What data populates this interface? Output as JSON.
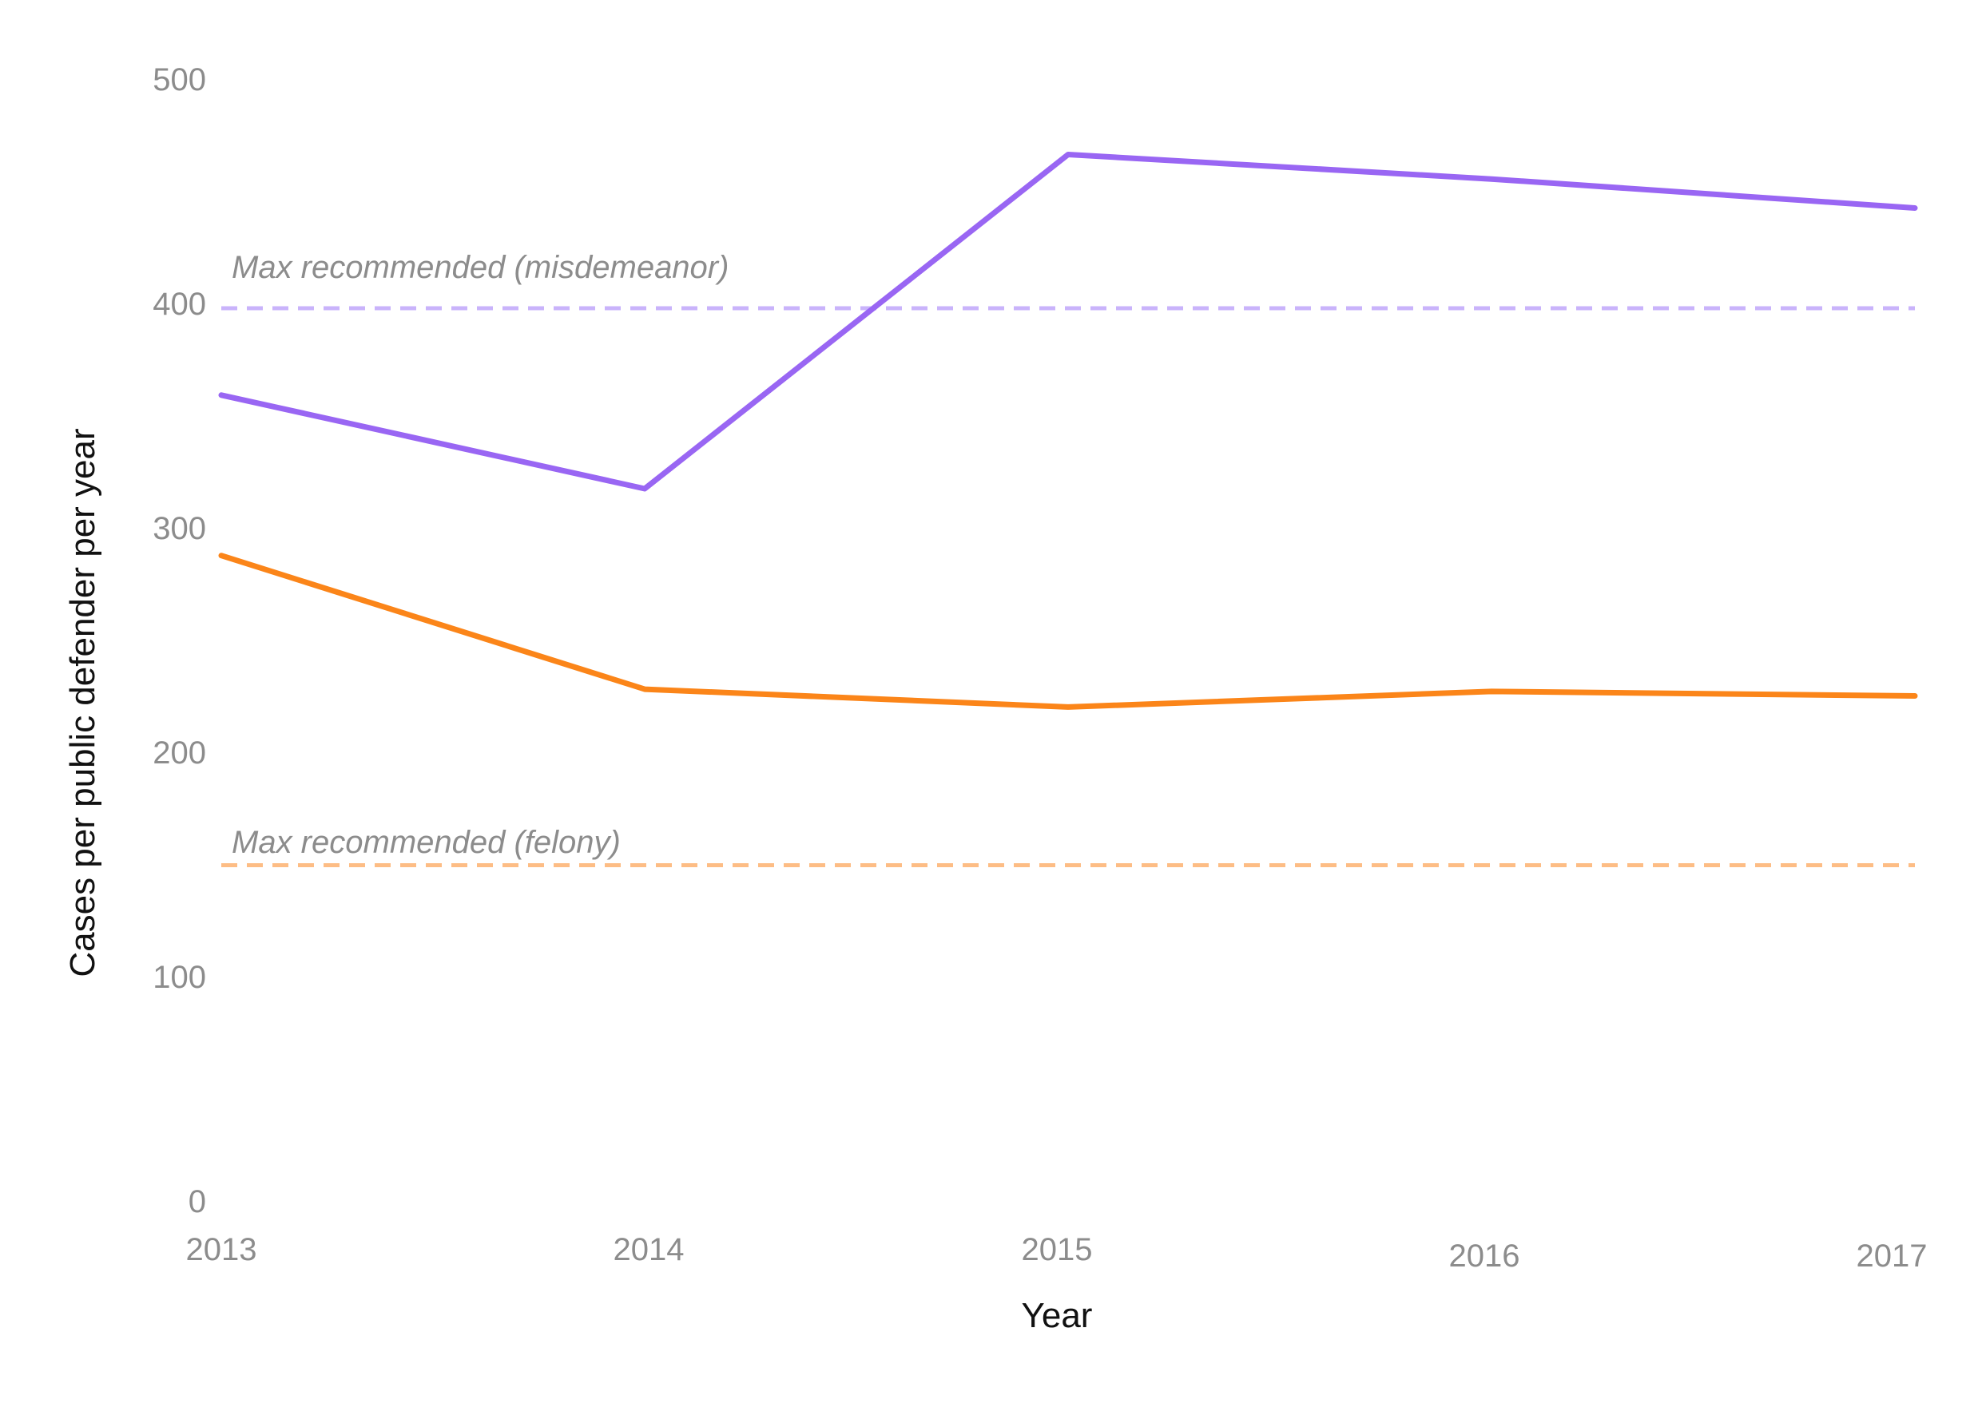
{
  "chart_data": {
    "type": "line",
    "x": [
      2013,
      2014,
      2015,
      2016,
      2017
    ],
    "x_tick_labels": [
      "2013",
      "2014",
      "2015",
      "2016",
      "2017"
    ],
    "y_tick_labels": [
      "0",
      "100",
      "200",
      "300",
      "400",
      "500"
    ],
    "ylim": [
      0,
      500
    ],
    "xlabel": "Year",
    "ylabel": "Cases per public defender per year",
    "grid": false,
    "series": [
      {
        "values": [
          361,
          319,
          469,
          458,
          445
        ],
        "color": "#9966f3"
      },
      {
        "values": [
          289,
          229,
          221,
          228,
          226
        ],
        "color": "#fb8519"
      }
    ],
    "reference_lines": [
      {
        "label": "Max recommended (misdemeanor)",
        "value": 400,
        "color": "#c9b3fb",
        "style": "dashed"
      },
      {
        "label": "Max recommended (felony)",
        "value": 150,
        "color": "#fdbd85",
        "style": "dashed"
      }
    ]
  }
}
